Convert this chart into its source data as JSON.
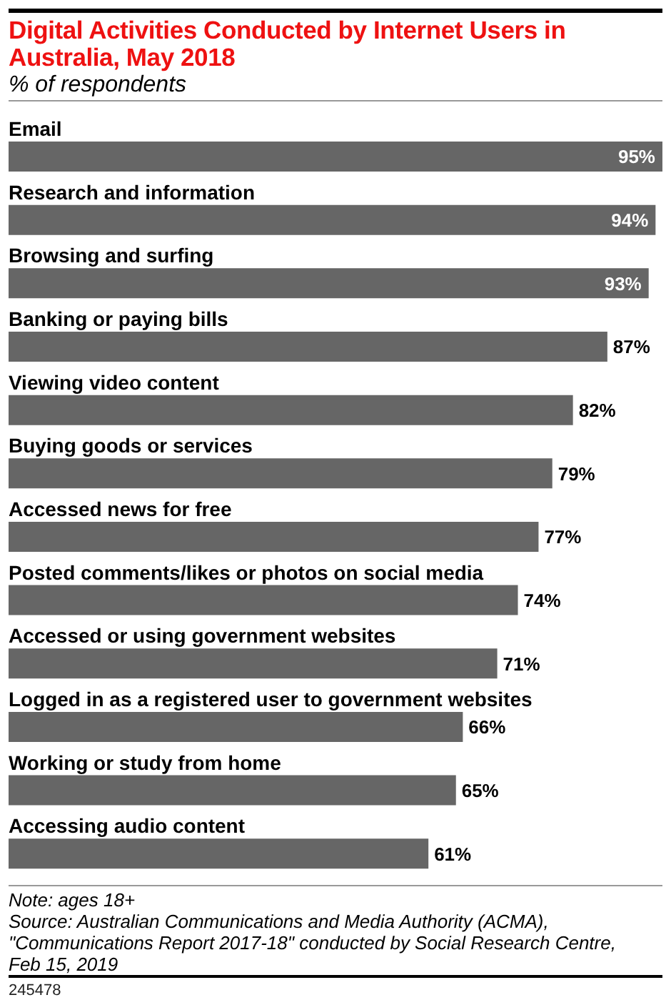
{
  "chart_data": {
    "type": "bar",
    "orientation": "horizontal",
    "title": "Digital Activities Conducted by Internet Users in Australia, May 2018",
    "subtitle": "% of respondents",
    "categories": [
      "Email",
      "Research and information",
      "Browsing and surfing",
      "Banking or paying bills",
      "Viewing video content",
      "Buying goods or services",
      "Accessed news for free",
      "Posted comments/likes or photos on social media",
      "Accessed or using government websites",
      "Logged in as a registered user to government websites",
      "Working or study from home",
      "Accessing audio content"
    ],
    "values": [
      95,
      94,
      93,
      87,
      82,
      79,
      77,
      74,
      71,
      66,
      65,
      61
    ],
    "value_labels": [
      "95%",
      "94%",
      "93%",
      "87%",
      "82%",
      "79%",
      "77%",
      "74%",
      "71%",
      "66%",
      "65%",
      "61%"
    ],
    "color": "#666666",
    "annotations": [
      "Note: ages 18+",
      "Source: Australian Communications and Media Authority (ACMA), \"Communications Report 2017-18\" conducted by Social Research Centre, Feb 15, 2019",
      "245478"
    ]
  }
}
